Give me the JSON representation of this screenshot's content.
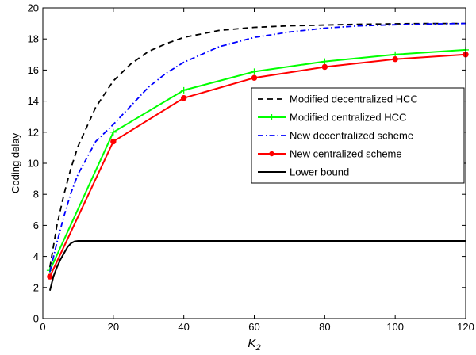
{
  "chart_data": {
    "type": "line",
    "xlabel": "K",
    "xlabel_sub": "2",
    "ylabel": "Coding delay",
    "xlim": [
      0,
      120
    ],
    "ylim": [
      0,
      20
    ],
    "xticks": [
      0,
      20,
      40,
      60,
      80,
      100,
      120
    ],
    "yticks": [
      0,
      2,
      4,
      6,
      8,
      10,
      12,
      14,
      16,
      18,
      20
    ],
    "grid": false,
    "legend_position": "center-right",
    "series": [
      {
        "name": "Modified decentralized HCC",
        "color": "#000000",
        "style": "dashed",
        "marker": "none",
        "x": [
          2,
          4,
          6,
          8,
          10,
          15,
          20,
          25,
          30,
          35,
          40,
          50,
          60,
          70,
          80,
          90,
          100,
          110,
          120
        ],
        "y": [
          3.3,
          6.0,
          8.0,
          9.7,
          11.1,
          13.6,
          15.3,
          16.4,
          17.2,
          17.7,
          18.1,
          18.55,
          18.75,
          18.85,
          18.9,
          18.95,
          18.98,
          19.0,
          19.0
        ]
      },
      {
        "name": "Modified centralized HCC",
        "color": "#00ff00",
        "style": "solid",
        "marker": "plus",
        "x": [
          2,
          20,
          40,
          60,
          80,
          100,
          120
        ],
        "y": [
          3.1,
          12.0,
          14.7,
          15.9,
          16.55,
          17.0,
          17.3
        ]
      },
      {
        "name": "New decentralized scheme",
        "color": "#0000ff",
        "style": "dashdot",
        "marker": "none",
        "x": [
          2,
          4,
          6,
          8,
          10,
          15,
          20,
          25,
          30,
          35,
          40,
          50,
          60,
          70,
          80,
          90,
          100,
          110,
          120
        ],
        "y": [
          3.0,
          4.9,
          6.6,
          8.1,
          9.3,
          11.4,
          12.5,
          13.7,
          14.9,
          15.8,
          16.5,
          17.5,
          18.1,
          18.45,
          18.7,
          18.85,
          18.92,
          18.97,
          19.0
        ]
      },
      {
        "name": "New centralized scheme",
        "color": "#ff0000",
        "style": "solid",
        "marker": "dot",
        "x": [
          2,
          20,
          40,
          60,
          80,
          100,
          120
        ],
        "y": [
          2.7,
          11.4,
          14.2,
          15.5,
          16.2,
          16.7,
          17.0
        ]
      },
      {
        "name": "Lower bound",
        "color": "#000000",
        "style": "solid",
        "marker": "none",
        "x": [
          2,
          3,
          4,
          5,
          6,
          7,
          8,
          9,
          10,
          20,
          40,
          60,
          80,
          100,
          120
        ],
        "y": [
          1.8,
          2.7,
          3.3,
          3.8,
          4.2,
          4.6,
          4.85,
          4.97,
          5.0,
          5.0,
          5.0,
          5.0,
          5.0,
          5.0,
          5.0
        ]
      }
    ]
  }
}
